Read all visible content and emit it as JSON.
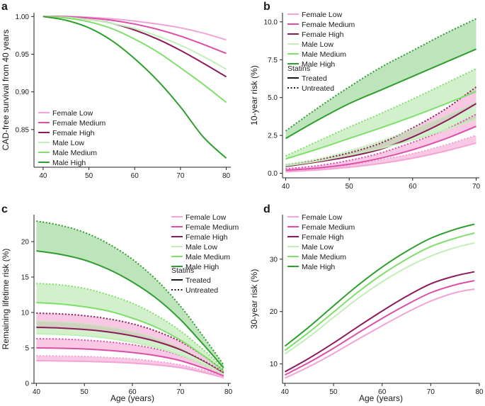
{
  "colors": {
    "female_low": "#f4a3d6",
    "female_medium": "#dd4ea8",
    "female_high": "#8e1a5e",
    "male_low": "#c2efb8",
    "male_medium": "#7ee06b",
    "male_high": "#2f9e2f",
    "band_female": "#ef86c6",
    "band_male": "#9ede8e",
    "band_male_high": "#6fc46b"
  },
  "chart_data": [
    {
      "id": "a",
      "panel_label": "a",
      "type": "line",
      "xlabel": "",
      "ylabel": "CAD-free survival from 40 years",
      "xlim": [
        38,
        81
      ],
      "ylim": [
        0.8,
        1.005
      ],
      "xticks": [
        40,
        50,
        60,
        70,
        80
      ],
      "yticks": [
        0.85,
        0.9,
        0.95,
        1.0
      ],
      "ytick_labels": [
        "0.85",
        "0.90",
        "0.95",
        "1.00"
      ],
      "legend": [
        "Female Low",
        "Female Medium",
        "Female High",
        "Male Low",
        "Male Medium",
        "Male High"
      ],
      "legend_position": "bottom-left",
      "series": [
        {
          "name": "Female Low",
          "color_key": "female_low",
          "x": [
            40,
            45,
            50,
            55,
            60,
            65,
            70,
            75,
            80
          ],
          "y": [
            1.0,
            1.0,
            0.999,
            0.997,
            0.994,
            0.99,
            0.985,
            0.978,
            0.969
          ]
        },
        {
          "name": "Female Medium",
          "color_key": "female_medium",
          "x": [
            40,
            45,
            50,
            55,
            60,
            65,
            70,
            75,
            80
          ],
          "y": [
            1.0,
            1.0,
            0.998,
            0.995,
            0.99,
            0.983,
            0.974,
            0.963,
            0.951
          ]
        },
        {
          "name": "Female High",
          "color_key": "female_high",
          "x": [
            40,
            45,
            50,
            55,
            60,
            65,
            70,
            75,
            80
          ],
          "y": [
            1.0,
            0.999,
            0.996,
            0.991,
            0.982,
            0.97,
            0.955,
            0.938,
            0.92
          ]
        },
        {
          "name": "Male Low",
          "color_key": "male_low",
          "x": [
            40,
            45,
            50,
            55,
            60,
            65,
            70,
            75,
            80
          ],
          "y": [
            1.0,
            0.999,
            0.996,
            0.991,
            0.984,
            0.974,
            0.962,
            0.947,
            0.93
          ]
        },
        {
          "name": "Male Medium",
          "color_key": "male_medium",
          "x": [
            40,
            45,
            50,
            55,
            60,
            65,
            70,
            75,
            80
          ],
          "y": [
            1.0,
            0.998,
            0.993,
            0.984,
            0.97,
            0.953,
            0.932,
            0.91,
            0.886
          ]
        },
        {
          "name": "Male High",
          "color_key": "male_high",
          "x": [
            40,
            45,
            50,
            55,
            60,
            65,
            70,
            75,
            80
          ],
          "y": [
            1.0,
            0.995,
            0.985,
            0.968,
            0.944,
            0.915,
            0.88,
            0.84,
            0.812
          ]
        }
      ]
    },
    {
      "id": "b",
      "panel_label": "b",
      "type": "line",
      "xlabel": "",
      "ylabel": "10-year risk (%)",
      "xlim": [
        39.5,
        70.5
      ],
      "ylim": [
        -0.3,
        10.6
      ],
      "xticks": [
        40,
        50,
        60,
        70
      ],
      "yticks": [
        0,
        2.5,
        5,
        7.5,
        10
      ],
      "ytick_labels": [
        "0.0",
        "2.5",
        "5.0",
        "7.5",
        "10.0"
      ],
      "legend": [
        "Female Low",
        "Female Medium",
        "Female High",
        "Male Low",
        "Male Medium",
        "Male High"
      ],
      "legend_position": "top-left",
      "linetype_legend": {
        "title": "Statins",
        "treated": "Treated",
        "untreated": "Untreated"
      },
      "series": [
        {
          "name": "Female Low",
          "color_key": "female_low",
          "x": [
            40,
            45,
            50,
            55,
            60,
            65,
            70
          ],
          "treated": [
            0.1,
            0.22,
            0.4,
            0.65,
            1.0,
            1.45,
            2.0
          ],
          "untreated": [
            0.15,
            0.3,
            0.55,
            0.9,
            1.3,
            1.85,
            2.5
          ]
        },
        {
          "name": "Female Medium",
          "color_key": "female_medium",
          "x": [
            40,
            45,
            50,
            55,
            60,
            65,
            70
          ],
          "treated": [
            0.2,
            0.35,
            0.6,
            1.0,
            1.55,
            2.25,
            3.1
          ],
          "untreated": [
            0.3,
            0.5,
            0.85,
            1.35,
            2.05,
            2.85,
            3.9
          ]
        },
        {
          "name": "Female High",
          "color_key": "female_high",
          "x": [
            40,
            45,
            50,
            55,
            60,
            65,
            70
          ],
          "treated": [
            0.45,
            0.75,
            1.1,
            1.6,
            2.4,
            3.4,
            4.6
          ],
          "untreated": [
            0.55,
            0.9,
            1.35,
            2.0,
            3.0,
            4.2,
            5.7
          ]
        },
        {
          "name": "Male Low",
          "color_key": "male_low",
          "x": [
            40,
            45,
            50,
            55,
            60,
            65,
            70
          ],
          "treated": [
            0.5,
            0.8,
            1.2,
            1.65,
            2.2,
            2.85,
            3.6
          ],
          "untreated": [
            0.6,
            0.95,
            1.5,
            2.15,
            2.9,
            3.75,
            4.7
          ]
        },
        {
          "name": "Male Medium",
          "color_key": "male_medium",
          "x": [
            40,
            45,
            50,
            55,
            60,
            65,
            70
          ],
          "treated": [
            0.95,
            1.6,
            2.3,
            3.0,
            3.75,
            4.55,
            5.4
          ],
          "untreated": [
            1.15,
            2.1,
            3.05,
            3.95,
            4.9,
            5.9,
            6.9
          ]
        },
        {
          "name": "Male High",
          "color_key": "male_high",
          "x": [
            40,
            45,
            50,
            55,
            60,
            65,
            70
          ],
          "treated": [
            2.3,
            3.5,
            4.6,
            5.5,
            6.4,
            7.3,
            8.2
          ],
          "untreated": [
            2.8,
            4.3,
            5.7,
            7.0,
            8.1,
            9.2,
            10.2
          ]
        }
      ]
    },
    {
      "id": "c",
      "panel_label": "c",
      "type": "line",
      "xlabel": "Age (years)",
      "ylabel": "Remaining lifetime risk (%)",
      "xlim": [
        39.5,
        80.5
      ],
      "ylim": [
        0,
        23.8
      ],
      "xticks": [
        40,
        50,
        60,
        70,
        80
      ],
      "yticks": [
        0,
        5,
        10,
        15,
        20
      ],
      "ytick_labels": [
        "0",
        "5",
        "10",
        "15",
        "20"
      ],
      "legend": [
        "Female Low",
        "Female Medium",
        "Female High",
        "Male Low",
        "Male Medium",
        "Male High"
      ],
      "legend_position": "top-right",
      "linetype_legend": {
        "title": "Statins",
        "treated": "Treated",
        "untreated": "Untreated"
      },
      "series": [
        {
          "name": "Female Low",
          "color_key": "female_low",
          "x": [
            40,
            45,
            50,
            55,
            60,
            65,
            70,
            75,
            79
          ],
          "treated": [
            3.2,
            3.15,
            3.1,
            3.0,
            2.85,
            2.6,
            2.2,
            1.5,
            0.8
          ],
          "untreated": [
            3.9,
            3.85,
            3.8,
            3.65,
            3.45,
            3.1,
            2.6,
            1.8,
            0.95
          ]
        },
        {
          "name": "Female Medium",
          "color_key": "female_medium",
          "x": [
            40,
            45,
            50,
            55,
            60,
            65,
            70,
            75,
            79
          ],
          "treated": [
            5.0,
            4.95,
            4.85,
            4.65,
            4.35,
            3.9,
            3.2,
            2.1,
            1.05
          ],
          "untreated": [
            6.3,
            6.25,
            6.1,
            5.85,
            5.45,
            4.85,
            3.95,
            2.6,
            1.3
          ]
        },
        {
          "name": "Female High",
          "color_key": "female_high",
          "x": [
            40,
            45,
            50,
            55,
            60,
            65,
            70,
            75,
            79
          ],
          "treated": [
            7.9,
            7.8,
            7.6,
            7.25,
            6.7,
            5.9,
            4.75,
            3.1,
            1.5
          ],
          "untreated": [
            9.9,
            9.8,
            9.55,
            9.1,
            8.4,
            7.35,
            5.9,
            3.8,
            1.8
          ]
        },
        {
          "name": "Male Low",
          "color_key": "male_low",
          "x": [
            40,
            45,
            50,
            55,
            60,
            65,
            70,
            75,
            79
          ],
          "treated": [
            7.0,
            6.9,
            6.7,
            6.35,
            5.8,
            5.05,
            4.0,
            2.6,
            1.3
          ],
          "untreated": [
            8.8,
            8.65,
            8.4,
            7.95,
            7.3,
            6.35,
            5.0,
            3.2,
            1.6
          ]
        },
        {
          "name": "Male Medium",
          "color_key": "male_medium",
          "x": [
            40,
            45,
            50,
            55,
            60,
            65,
            70,
            75,
            79
          ],
          "treated": [
            11.4,
            11.2,
            10.8,
            10.2,
            9.2,
            7.9,
            6.1,
            3.8,
            1.7
          ],
          "untreated": [
            14.1,
            13.9,
            13.4,
            12.5,
            11.3,
            9.6,
            7.4,
            4.6,
            2.1
          ]
        },
        {
          "name": "Male High",
          "color_key": "male_high",
          "x": [
            40,
            45,
            50,
            55,
            60,
            65,
            70,
            75,
            79
          ],
          "treated": [
            18.7,
            18.2,
            17.4,
            16.1,
            14.3,
            12.0,
            9.0,
            5.3,
            2.2
          ],
          "untreated": [
            22.9,
            22.3,
            21.3,
            19.7,
            17.5,
            14.6,
            10.9,
            6.4,
            2.6
          ]
        }
      ]
    },
    {
      "id": "d",
      "panel_label": "d",
      "type": "line",
      "xlabel": "Age (years)",
      "ylabel": "30-year risk (%)",
      "xlim": [
        39.5,
        80
      ],
      "ylim": [
        6.3,
        38.5
      ],
      "xticks": [
        40,
        50,
        60,
        70,
        80
      ],
      "yticks": [
        10,
        20,
        30
      ],
      "ytick_labels": [
        "10",
        "20",
        "30"
      ],
      "legend": [
        "Female Low",
        "Female Medium",
        "Female High",
        "Male Low",
        "Male Medium",
        "Male High"
      ],
      "legend_position": "top-left",
      "series": [
        {
          "name": "Female Low",
          "color_key": "female_low",
          "x": [
            40,
            45,
            50,
            55,
            60,
            65,
            70,
            75,
            79
          ],
          "y": [
            7.3,
            9.5,
            12.0,
            14.7,
            17.3,
            19.8,
            22.0,
            23.6,
            24.3
          ]
        },
        {
          "name": "Female Medium",
          "color_key": "female_medium",
          "x": [
            40,
            45,
            50,
            55,
            60,
            65,
            70,
            75,
            79
          ],
          "y": [
            7.9,
            10.3,
            13.0,
            15.9,
            18.7,
            21.3,
            23.6,
            25.1,
            25.9
          ]
        },
        {
          "name": "Female High",
          "color_key": "female_high",
          "x": [
            40,
            45,
            50,
            55,
            60,
            65,
            70,
            75,
            79
          ],
          "y": [
            8.5,
            11.1,
            14.0,
            17.1,
            20.1,
            22.9,
            25.3,
            26.8,
            27.6
          ]
        },
        {
          "name": "Male Low",
          "color_key": "male_low",
          "x": [
            40,
            45,
            50,
            55,
            60,
            65,
            70,
            75,
            79
          ],
          "y": [
            11.9,
            15.2,
            18.9,
            22.5,
            25.7,
            28.4,
            30.6,
            32.2,
            33.1
          ]
        },
        {
          "name": "Male Medium",
          "color_key": "male_medium",
          "x": [
            40,
            45,
            50,
            55,
            60,
            65,
            70,
            75,
            79
          ],
          "y": [
            12.6,
            16.1,
            19.9,
            23.7,
            27.1,
            30.0,
            32.4,
            34.0,
            35.0
          ]
        },
        {
          "name": "Male High",
          "color_key": "male_high",
          "x": [
            40,
            45,
            50,
            55,
            60,
            65,
            70,
            75,
            79
          ],
          "y": [
            13.4,
            17.1,
            21.1,
            25.0,
            28.5,
            31.5,
            34.0,
            35.7,
            36.7
          ]
        }
      ]
    }
  ]
}
